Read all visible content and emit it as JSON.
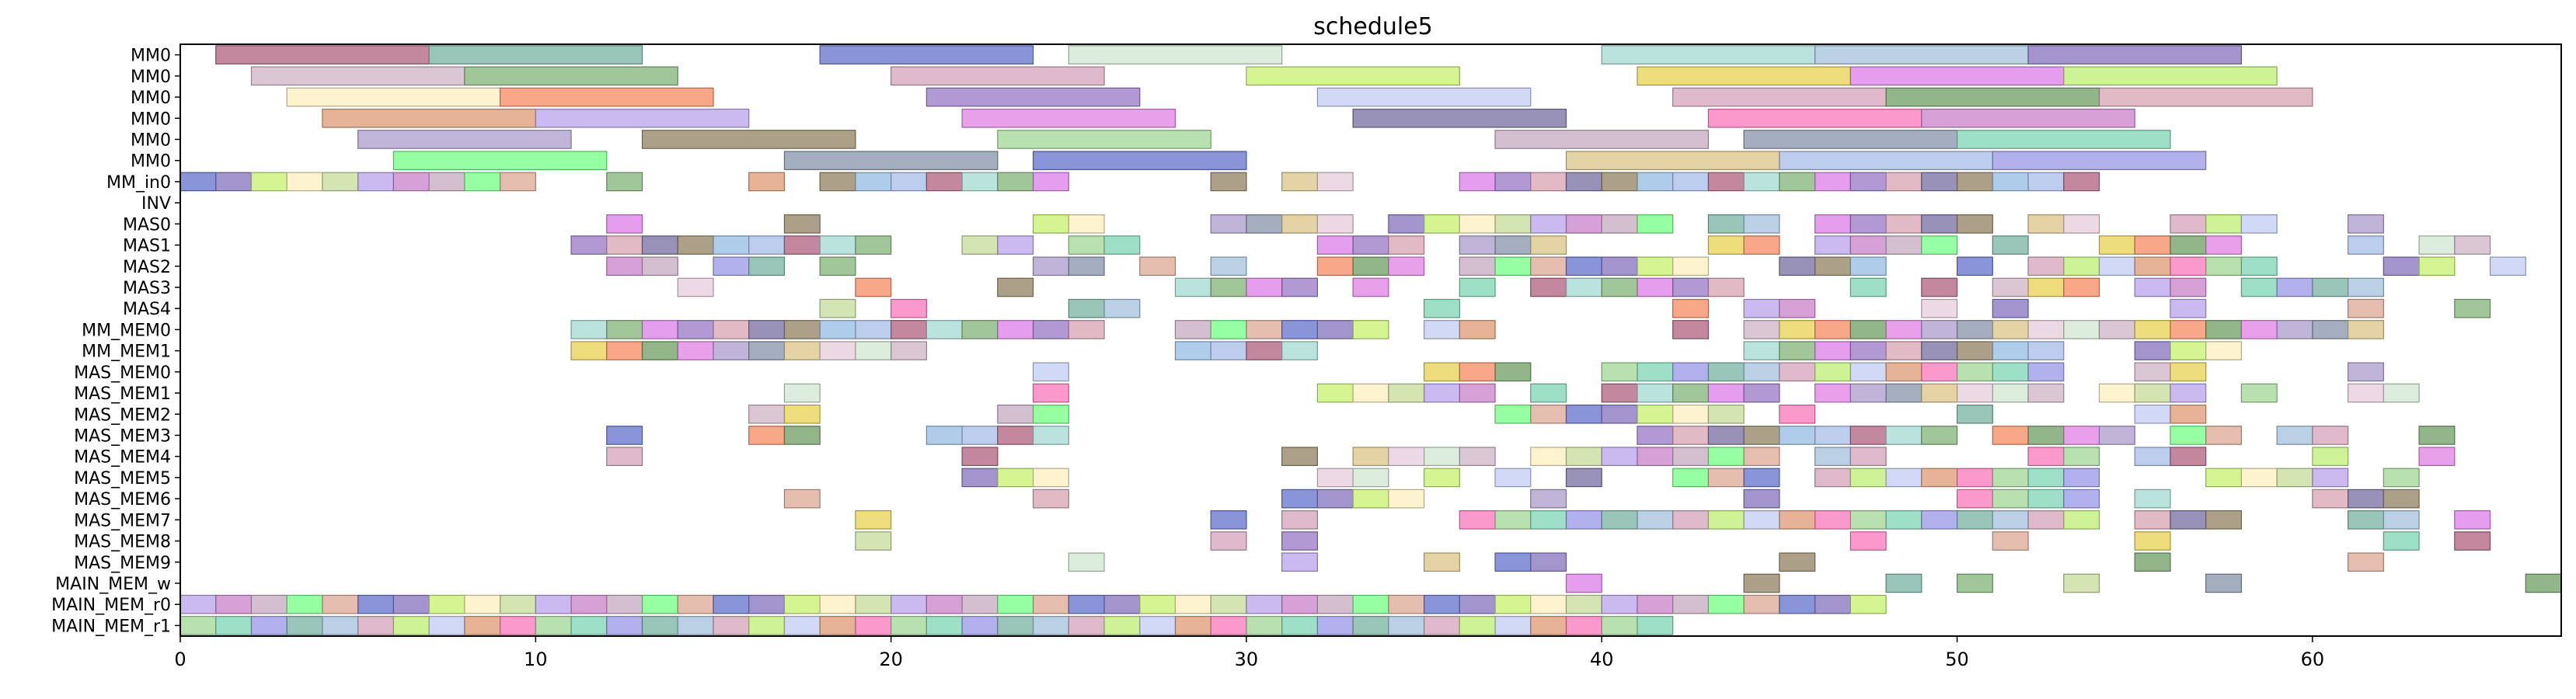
{
  "chart_data": {
    "type": "gantt",
    "title": "schedule5",
    "xlabel": "",
    "ylabel": "",
    "xlim": [
      0,
      67
    ],
    "x_ticks": [
      0,
      10,
      20,
      30,
      40,
      50,
      60
    ],
    "grid": false,
    "rows": [
      "MM0",
      "MM0",
      "MM0",
      "MM0",
      "MM0",
      "MM0",
      "MM_in0",
      "INV",
      "MAS0",
      "MAS1",
      "MAS2",
      "MAS3",
      "MAS4",
      "MM_MEM0",
      "MM_MEM1",
      "MAS_MEM0",
      "MAS_MEM1",
      "MAS_MEM2",
      "MAS_MEM3",
      "MAS_MEM4",
      "MAS_MEM5",
      "MAS_MEM6",
      "MAS_MEM7",
      "MAS_MEM8",
      "MAS_MEM9",
      "MAIN_MEM_w",
      "MAIN_MEM_r0",
      "MAIN_MEM_r1"
    ],
    "palette": [
      "#b56a86",
      "#7fb8a8",
      "#6b79d0",
      "#d4e8d4",
      "#a9dcd6",
      "#a9c4dd",
      "#8b7bc2",
      "#d2b8c9",
      "#8ab87f",
      "#d6a9bd",
      "#c9f277",
      "#e9d45c",
      "#dd86e8",
      "#c2f07c",
      "#fdf0c2",
      "#f6926b",
      "#9d7fc9",
      "#c6d0f4",
      "#c9dfa0",
      "#77a36c",
      "#d9a9b8",
      "#e0a07c",
      "#bda9ec",
      "#e488e6",
      "#7e75a6",
      "#fa80c0",
      "#cc8acc",
      "#b0a3d0",
      "#978a6a",
      "#a6d99b",
      "#c8afc4",
      "#8f9aae",
      "#9bc1e6",
      "#86d7b9",
      "#7cff8a",
      "#ddc98f",
      "#abc0ea",
      "#9f9ee8",
      "#e0ae9c",
      "#e8d0dc"
    ],
    "bars": [
      [
        0,
        1,
        6,
        0
      ],
      [
        0,
        7,
        6,
        1
      ],
      [
        0,
        18,
        6,
        2
      ],
      [
        0,
        25,
        6,
        3
      ],
      [
        0,
        40,
        6,
        4
      ],
      [
        0,
        46,
        6,
        5
      ],
      [
        0,
        52,
        6,
        6
      ],
      [
        1,
        2,
        6,
        7
      ],
      [
        1,
        8,
        6,
        8
      ],
      [
        1,
        20,
        6,
        9
      ],
      [
        1,
        30,
        6,
        10
      ],
      [
        1,
        41,
        6,
        11
      ],
      [
        1,
        47,
        6,
        12
      ],
      [
        1,
        53,
        6,
        13
      ],
      [
        2,
        3,
        6,
        14
      ],
      [
        2,
        9,
        6,
        15
      ],
      [
        2,
        21,
        6,
        16
      ],
      [
        2,
        32,
        6,
        17
      ],
      [
        2,
        42,
        6,
        9
      ],
      [
        2,
        48,
        6,
        19
      ],
      [
        2,
        54,
        6,
        20
      ],
      [
        3,
        4,
        6,
        21
      ],
      [
        3,
        10,
        6,
        22
      ],
      [
        3,
        22,
        6,
        23
      ],
      [
        3,
        33,
        6,
        24
      ],
      [
        3,
        43,
        6,
        25
      ],
      [
        3,
        49,
        6,
        26
      ],
      [
        4,
        5,
        6,
        27
      ],
      [
        4,
        13,
        6,
        28
      ],
      [
        4,
        23,
        6,
        29
      ],
      [
        4,
        37,
        6,
        30
      ],
      [
        4,
        44,
        6,
        31
      ],
      [
        4,
        50,
        6,
        33
      ],
      [
        5,
        6,
        6,
        34
      ],
      [
        5,
        17,
        6,
        31
      ],
      [
        5,
        24,
        6,
        2
      ],
      [
        5,
        39,
        6,
        35
      ],
      [
        5,
        45,
        6,
        36
      ],
      [
        5,
        51,
        6,
        37
      ]
    ],
    "cells": [
      [
        6,
        [
          0,
          1,
          2,
          3,
          4,
          5,
          6,
          7,
          8,
          9,
          12,
          16,
          18,
          19,
          20,
          21,
          22,
          23,
          24,
          29,
          31,
          32,
          36,
          37,
          38,
          39,
          40,
          41,
          42,
          43,
          44,
          45,
          46,
          47,
          48,
          49,
          50,
          51,
          52,
          53
        ]
      ],
      [
        8,
        [
          12,
          17,
          24,
          25,
          29,
          30,
          31,
          32,
          34,
          35,
          36,
          37,
          38,
          39,
          40,
          41,
          43,
          44,
          46,
          47,
          48,
          49,
          50,
          52,
          53,
          56,
          57,
          58,
          61
        ]
      ],
      [
        9,
        [
          11,
          12,
          13,
          14,
          15,
          16,
          17,
          18,
          19,
          22,
          23,
          25,
          26,
          32,
          33,
          34,
          36,
          37,
          38,
          43,
          44,
          46,
          47,
          48,
          49,
          51,
          54,
          55,
          56,
          57,
          61,
          63,
          64
        ]
      ],
      [
        10,
        [
          12,
          13,
          15,
          16,
          18,
          24,
          25,
          27,
          29,
          32,
          33,
          34,
          36,
          37,
          38,
          39,
          40,
          41,
          42,
          45,
          46,
          47,
          50,
          52,
          53,
          54,
          55,
          56,
          57,
          58,
          62,
          63,
          65
        ]
      ],
      [
        11,
        [
          14,
          19,
          23,
          28,
          29,
          30,
          31,
          33,
          36,
          38,
          39,
          40,
          41,
          42,
          43,
          47,
          49,
          51,
          52,
          53,
          55,
          56,
          58,
          59,
          60,
          61
        ]
      ],
      [
        12,
        [
          18,
          20,
          25,
          26,
          35,
          42,
          44,
          45,
          49,
          51,
          56,
          61,
          64
        ]
      ],
      [
        13,
        [
          11,
          12,
          13,
          14,
          15,
          16,
          17,
          18,
          19,
          20,
          21,
          22,
          23,
          24,
          25,
          28,
          29,
          30,
          31,
          32,
          33,
          35,
          36,
          42,
          44,
          45,
          46,
          47,
          48,
          49,
          50,
          51,
          52,
          53,
          54,
          55,
          56,
          57,
          58,
          59,
          60,
          61
        ]
      ],
      [
        14,
        [
          11,
          12,
          13,
          14,
          15,
          16,
          17,
          18,
          19,
          20,
          28,
          29,
          30,
          31,
          44,
          45,
          46,
          47,
          48,
          49,
          50,
          51,
          52,
          55,
          56,
          57
        ]
      ],
      [
        15,
        [
          24,
          35,
          36,
          37,
          40,
          41,
          42,
          43,
          44,
          45,
          46,
          47,
          48,
          49,
          50,
          51,
          52,
          55,
          56,
          61
        ]
      ],
      [
        16,
        [
          17,
          24,
          32,
          33,
          34,
          35,
          36,
          38,
          40,
          41,
          42,
          43,
          44,
          46,
          47,
          48,
          49,
          50,
          51,
          52,
          54,
          55,
          56,
          58,
          61,
          62
        ]
      ],
      [
        17,
        [
          16,
          17,
          23,
          24,
          37,
          38,
          39,
          40,
          41,
          42,
          43,
          45,
          50,
          55,
          56
        ]
      ],
      [
        18,
        [
          12,
          16,
          17,
          21,
          22,
          23,
          24,
          41,
          42,
          43,
          44,
          45,
          46,
          47,
          48,
          49,
          51,
          52,
          53,
          54,
          56,
          57,
          59,
          60,
          63
        ]
      ],
      [
        19,
        [
          12,
          22,
          31,
          33,
          34,
          35,
          36,
          38,
          39,
          40,
          41,
          42,
          43,
          44,
          46,
          47,
          52,
          53,
          55,
          56,
          60,
          63
        ]
      ],
      [
        20,
        [
          22,
          23,
          24,
          32,
          33,
          35,
          37,
          39,
          42,
          43,
          44,
          46,
          47,
          48,
          49,
          50,
          51,
          52,
          53,
          57,
          58,
          59,
          60,
          62
        ]
      ],
      [
        21,
        [
          17,
          24,
          31,
          32,
          33,
          34,
          38,
          44,
          50,
          51,
          52,
          53,
          55,
          60,
          61,
          62
        ]
      ],
      [
        22,
        [
          19,
          29,
          31,
          36,
          37,
          38,
          39,
          40,
          41,
          42,
          43,
          44,
          45,
          46,
          47,
          48,
          49,
          50,
          51,
          52,
          53,
          55,
          56,
          57,
          61,
          62,
          64
        ]
      ],
      [
        23,
        [
          19,
          29,
          31,
          47,
          51,
          55,
          62,
          64
        ]
      ],
      [
        24,
        [
          25,
          31,
          35,
          37,
          38,
          45,
          55,
          61
        ]
      ],
      [
        25,
        [
          39,
          44,
          48,
          50,
          53,
          57,
          66
        ]
      ],
      [
        26,
        [
          0,
          1,
          2,
          3,
          4,
          5,
          6,
          7,
          8,
          9,
          10,
          11,
          12,
          13,
          14,
          15,
          16,
          17,
          18,
          19,
          20,
          21,
          22,
          23,
          24,
          25,
          26,
          27,
          28,
          29,
          30,
          31,
          32,
          33,
          34,
          35,
          36,
          37,
          38,
          39,
          40,
          41,
          42,
          43,
          44,
          45,
          46,
          47
        ]
      ],
      [
        27,
        [
          0,
          1,
          2,
          3,
          4,
          5,
          6,
          7,
          8,
          9,
          10,
          11,
          12,
          13,
          14,
          15,
          16,
          17,
          18,
          19,
          20,
          21,
          22,
          23,
          24,
          25,
          26,
          27,
          28,
          29,
          30,
          31,
          32,
          33,
          34,
          35,
          36,
          37,
          38,
          39,
          40,
          41
        ]
      ]
    ]
  }
}
